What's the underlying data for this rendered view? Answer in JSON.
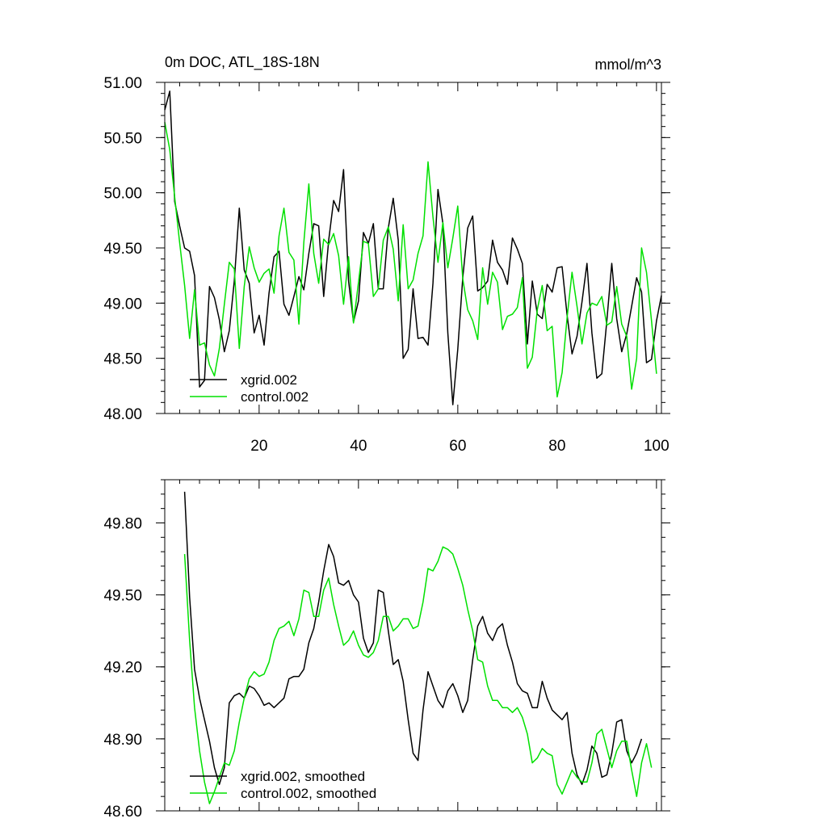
{
  "chart_data": [
    {
      "type": "line",
      "title_left": "0m DOC, ATL_18S-18N",
      "title_right": "mmol/m^3",
      "xlim": [
        1,
        101
      ],
      "ylim": [
        48.0,
        51.0
      ],
      "xticks": [
        20,
        40,
        60,
        80,
        100
      ],
      "yticks": [
        48.0,
        48.5,
        49.0,
        49.5,
        50.0,
        50.5,
        51.0
      ],
      "ytick_labels": [
        "48.00",
        "48.50",
        "49.00",
        "49.50",
        "50.00",
        "50.50",
        "51.00"
      ],
      "legend_position": "bottom-left",
      "series": [
        {
          "name": "xgrid.002",
          "color": "#000000",
          "x_start": 1,
          "values": [
            50.75,
            50.92,
            49.92,
            49.7,
            49.5,
            49.47,
            49.25,
            48.24,
            48.3,
            49.15,
            49.05,
            48.85,
            48.56,
            48.75,
            49.2,
            49.86,
            49.3,
            49.18,
            48.73,
            48.89,
            48.62,
            49.09,
            49.42,
            49.47,
            48.99,
            48.89,
            49.06,
            49.24,
            49.12,
            49.45,
            49.72,
            49.7,
            49.06,
            49.57,
            49.93,
            49.83,
            50.21,
            49.2,
            48.83,
            49.02,
            49.64,
            49.54,
            49.72,
            49.13,
            49.13,
            49.68,
            49.95,
            49.57,
            48.5,
            48.58,
            49.13,
            48.68,
            48.69,
            48.62,
            49.18,
            50.03,
            49.72,
            48.73,
            48.08,
            48.58,
            49.23,
            49.68,
            49.79,
            49.11,
            49.14,
            49.2,
            49.57,
            49.37,
            49.3,
            49.17,
            49.59,
            49.49,
            49.36,
            48.63,
            49.2,
            48.9,
            48.86,
            49.17,
            49.1,
            49.32,
            49.33,
            48.89,
            48.54,
            48.7,
            49.01,
            49.36,
            48.73,
            48.32,
            48.36,
            48.84,
            49.36,
            48.86,
            48.56,
            48.72,
            48.97,
            49.23,
            49.1,
            48.46,
            48.49,
            48.84,
            49.07
          ]
        },
        {
          "name": "control.002",
          "color": "#00e000",
          "x_start": 1,
          "values": [
            50.64,
            50.39,
            49.96,
            49.55,
            49.16,
            48.68,
            49.12,
            48.62,
            48.64,
            48.44,
            48.34,
            48.59,
            48.99,
            49.37,
            49.31,
            48.59,
            49.15,
            49.51,
            49.32,
            49.19,
            49.27,
            49.31,
            49.09,
            49.61,
            49.86,
            49.46,
            49.39,
            48.81,
            49.55,
            50.08,
            49.45,
            49.18,
            49.58,
            49.53,
            49.63,
            49.43,
            48.99,
            49.42,
            48.82,
            49.19,
            49.56,
            49.54,
            49.06,
            49.13,
            49.57,
            49.69,
            49.49,
            49.02,
            49.71,
            49.13,
            49.21,
            49.45,
            49.61,
            50.28,
            49.78,
            49.37,
            49.73,
            49.32,
            49.59,
            49.88,
            49.22,
            48.94,
            48.84,
            48.67,
            49.32,
            48.99,
            49.28,
            49.19,
            48.76,
            48.88,
            48.9,
            48.96,
            49.23,
            48.41,
            48.51,
            48.94,
            49.16,
            48.75,
            48.79,
            48.15,
            48.37,
            48.87,
            49.28,
            48.97,
            48.63,
            48.91,
            49.0,
            48.98,
            49.06,
            48.8,
            48.83,
            49.15,
            48.81,
            48.7,
            48.22,
            48.5,
            49.5,
            49.28,
            48.84,
            48.36
          ]
        }
      ]
    },
    {
      "type": "line",
      "xlim": [
        1,
        101
      ],
      "ylim": [
        48.6,
        49.98
      ],
      "xticks": [
        20,
        40,
        60,
        80,
        100
      ],
      "yticks": [
        48.6,
        48.9,
        49.2,
        49.5,
        49.8
      ],
      "ytick_labels": [
        "48.60",
        "48.90",
        "49.20",
        "49.50",
        "49.80"
      ],
      "legend_position": "bottom-left",
      "series": [
        {
          "name": "xgrid.002, smoothed",
          "color": "#000000",
          "x_start": 5,
          "values": [
            49.93,
            49.49,
            49.19,
            49.07,
            48.98,
            48.89,
            48.78,
            48.71,
            48.78,
            49.05,
            49.08,
            49.09,
            49.07,
            49.12,
            49.11,
            49.08,
            49.04,
            49.05,
            49.03,
            49.05,
            49.07,
            49.15,
            49.16,
            49.16,
            49.19,
            49.3,
            49.36,
            49.47,
            49.6,
            49.71,
            49.66,
            49.55,
            49.54,
            49.56,
            49.5,
            49.47,
            49.32,
            49.26,
            49.3,
            49.52,
            49.51,
            49.35,
            49.21,
            49.23,
            49.14,
            48.98,
            48.84,
            48.81,
            49.02,
            49.18,
            49.12,
            49.06,
            49.03,
            49.1,
            49.13,
            49.08,
            49.01,
            49.06,
            49.23,
            49.37,
            49.41,
            49.34,
            49.31,
            49.36,
            49.38,
            49.29,
            49.22,
            49.13,
            49.1,
            49.09,
            49.03,
            49.03,
            49.14,
            49.07,
            49.02,
            49.0,
            48.98,
            49.01,
            48.84,
            48.75,
            48.71,
            48.77,
            48.87,
            48.84,
            48.74,
            48.75,
            48.84,
            48.97,
            48.98,
            48.85,
            48.8,
            48.84,
            48.9
          ]
        },
        {
          "name": "control.002, smoothed",
          "color": "#00e000",
          "x_start": 5,
          "values": [
            49.67,
            49.31,
            49.03,
            48.85,
            48.72,
            48.63,
            48.68,
            48.74,
            48.8,
            48.79,
            48.85,
            48.97,
            49.07,
            49.15,
            49.18,
            49.16,
            49.17,
            49.22,
            49.31,
            49.36,
            49.37,
            49.39,
            49.33,
            49.4,
            49.52,
            49.51,
            49.41,
            49.41,
            49.52,
            49.57,
            49.46,
            49.37,
            49.29,
            49.31,
            49.35,
            49.29,
            49.25,
            49.24,
            49.26,
            49.31,
            49.41,
            49.41,
            49.35,
            49.37,
            49.4,
            49.4,
            49.36,
            49.37,
            49.47,
            49.61,
            49.6,
            49.64,
            49.7,
            49.69,
            49.67,
            49.61,
            49.54,
            49.44,
            49.35,
            49.23,
            49.22,
            49.12,
            49.06,
            49.06,
            49.03,
            49.03,
            49.01,
            49.03,
            48.99,
            48.92,
            48.8,
            48.82,
            48.86,
            48.84,
            48.83,
            48.71,
            48.67,
            48.72,
            48.77,
            48.74,
            48.72,
            48.72,
            48.8,
            48.92,
            48.94,
            48.86,
            48.78,
            48.85,
            48.89,
            48.89,
            48.77,
            48.66,
            48.8,
            48.88,
            48.78
          ]
        }
      ]
    }
  ]
}
